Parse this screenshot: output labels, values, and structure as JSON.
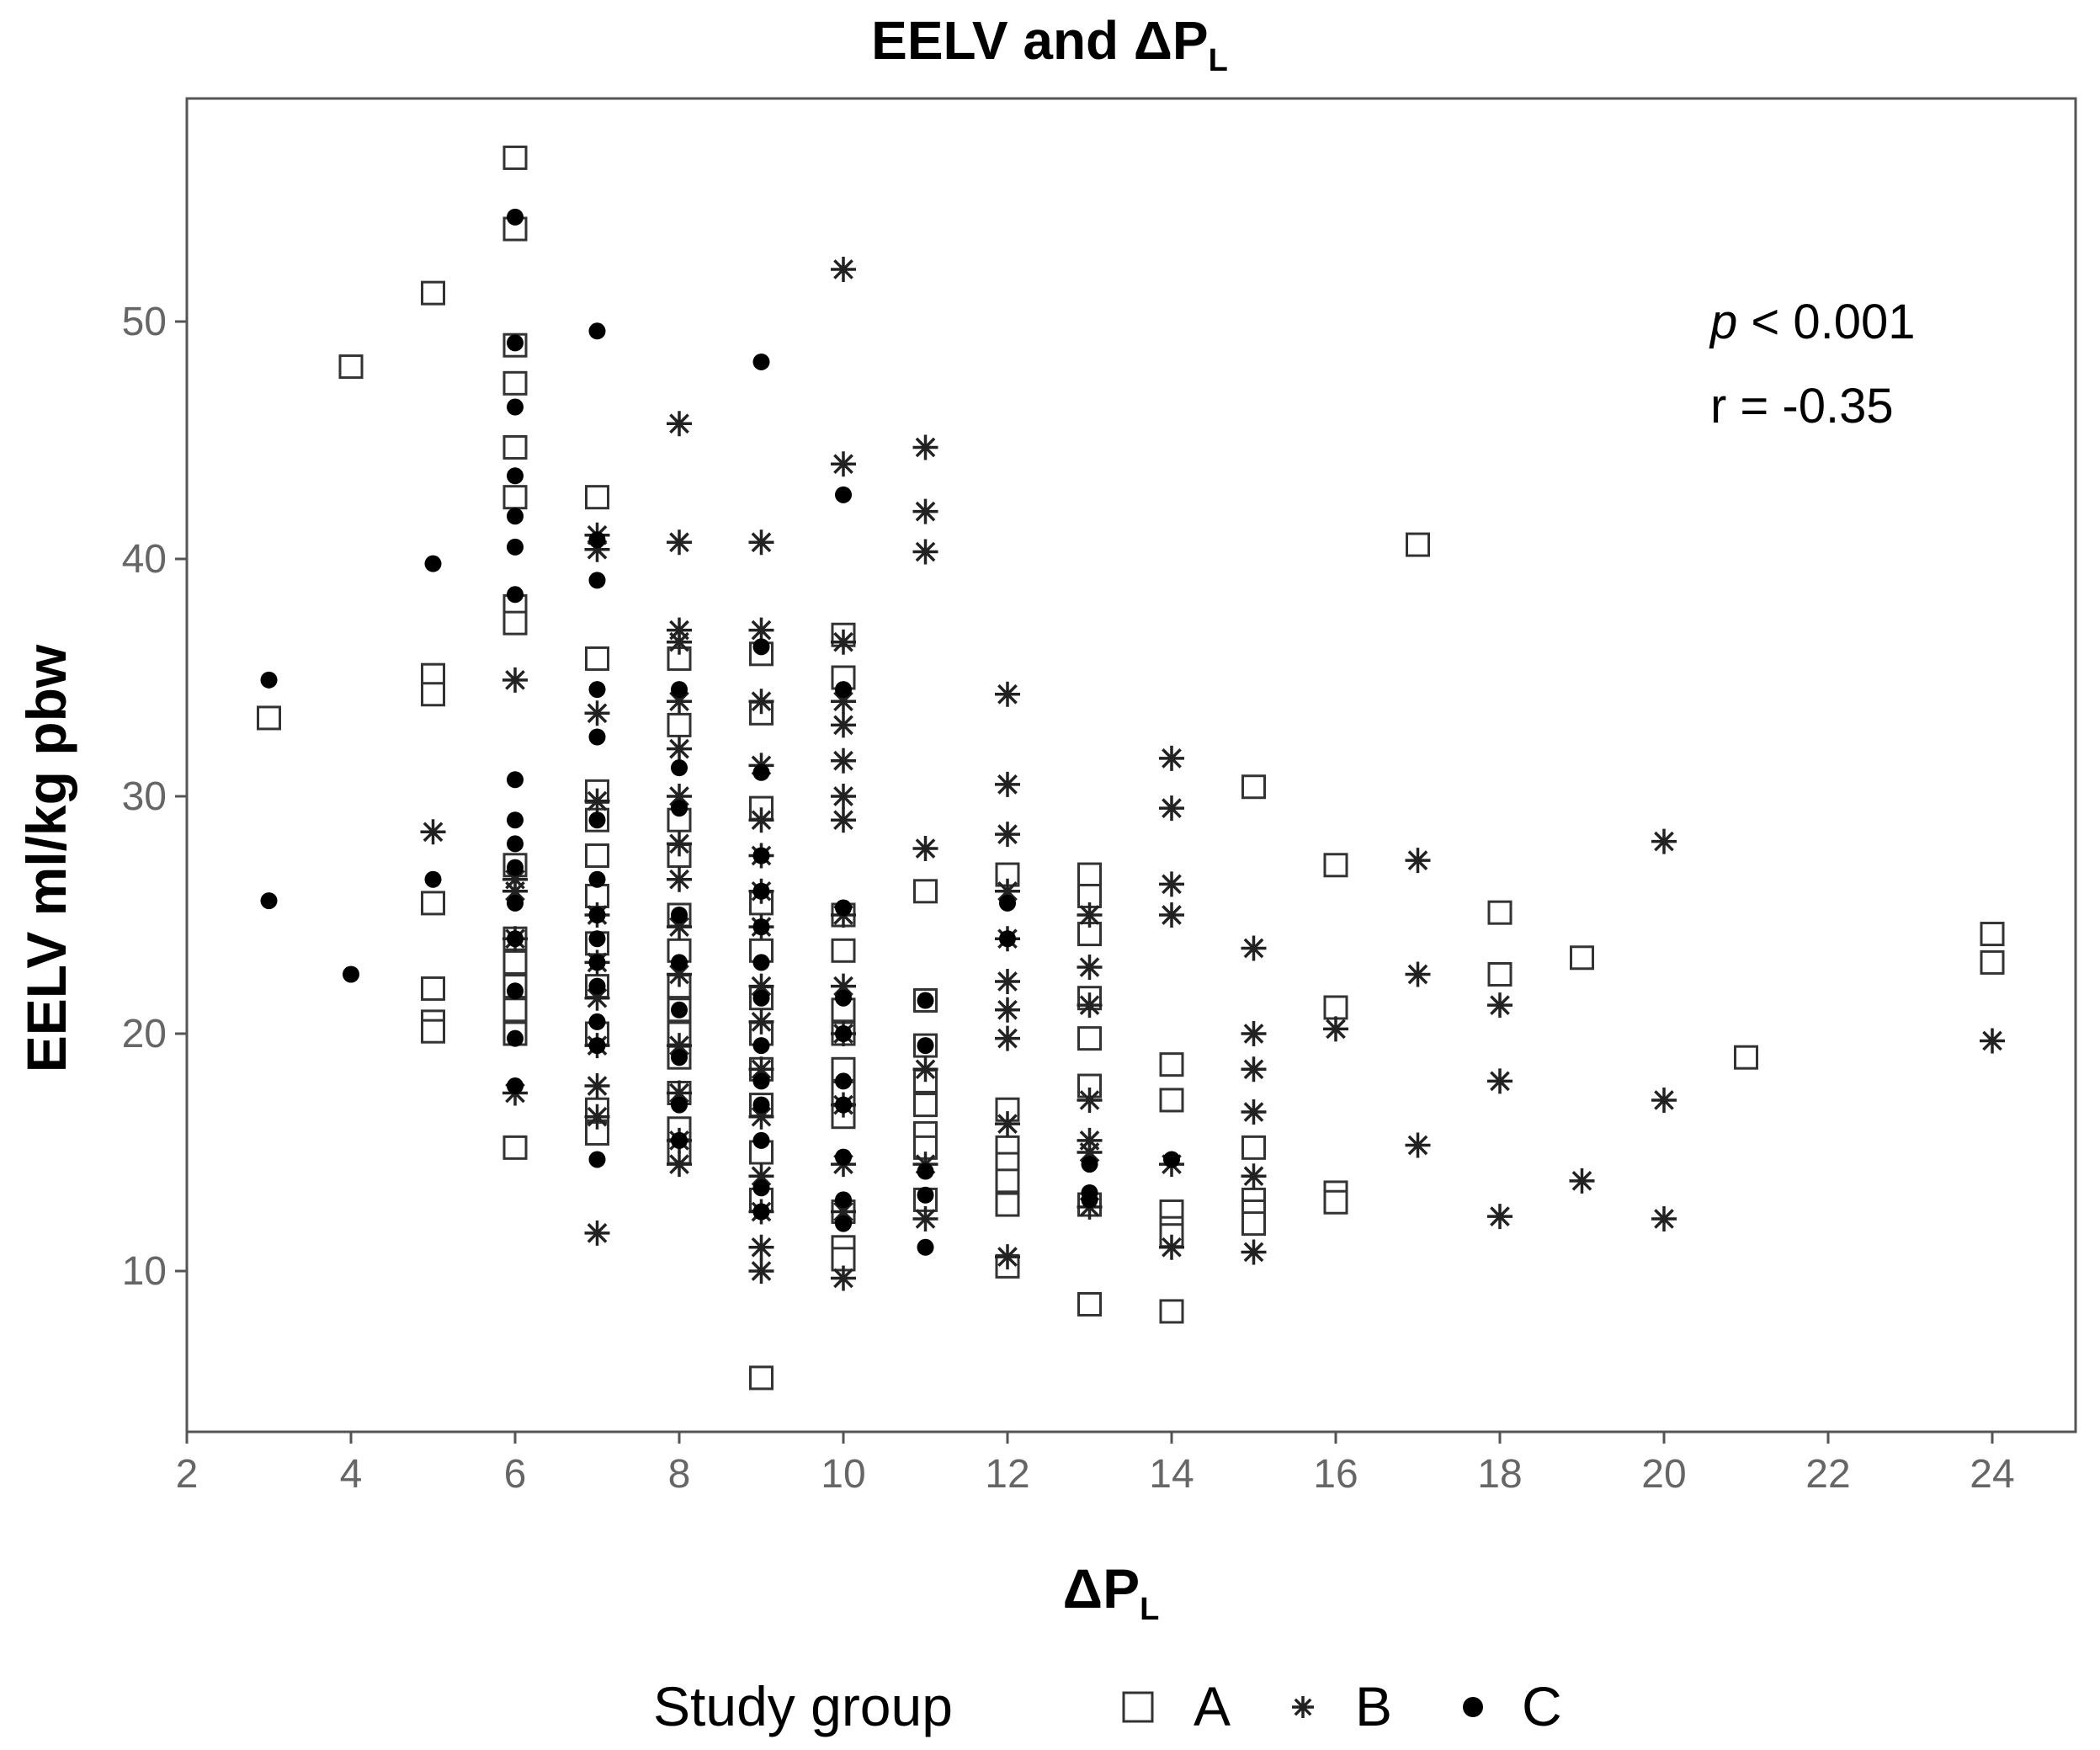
{
  "chart_data": {
    "type": "scatter",
    "title": "EELV and ΔP",
    "title_subscript": "L",
    "xlabel": "ΔP",
    "xlabel_subscript": "L",
    "ylabel": "EELV ml/kg pbw",
    "xlim": [
      2,
      25
    ],
    "ylim": [
      3,
      60
    ],
    "xticks": [
      2,
      4,
      6,
      8,
      10,
      12,
      14,
      16,
      18,
      20,
      22,
      24
    ],
    "yticks": [
      10,
      20,
      30,
      40,
      50
    ],
    "grid": false,
    "legend_position": "bottom",
    "legend_title": "Study group",
    "annotations": {
      "p_label": "p",
      "p_value": " < 0.001",
      "r": "r = -0.35"
    },
    "series": [
      {
        "name": "A",
        "marker": "square",
        "points": [
          [
            3,
            33.3
          ],
          [
            4,
            48.1
          ],
          [
            5,
            51.2
          ],
          [
            5,
            35.1
          ],
          [
            5,
            34.3
          ],
          [
            5,
            25.5
          ],
          [
            5,
            21.9
          ],
          [
            5,
            20.5
          ],
          [
            5,
            20.1
          ],
          [
            6,
            56.9
          ],
          [
            6,
            53.9
          ],
          [
            6,
            49
          ],
          [
            6,
            47.4
          ],
          [
            6,
            44.7
          ],
          [
            6,
            42.6
          ],
          [
            6,
            38
          ],
          [
            6,
            37.3
          ],
          [
            6,
            27.1
          ],
          [
            6,
            24
          ],
          [
            6,
            23
          ],
          [
            6,
            22
          ],
          [
            6,
            21
          ],
          [
            6,
            20
          ],
          [
            6,
            15.2
          ],
          [
            7,
            42.6
          ],
          [
            7,
            35.8
          ],
          [
            7,
            30.2
          ],
          [
            7,
            29
          ],
          [
            7,
            27.5
          ],
          [
            7,
            25.8
          ],
          [
            7,
            23.8
          ],
          [
            7,
            22
          ],
          [
            7,
            20
          ],
          [
            7,
            16.8
          ],
          [
            7,
            15.8
          ],
          [
            8,
            35.8
          ],
          [
            8,
            33
          ],
          [
            8,
            29
          ],
          [
            8,
            27.5
          ],
          [
            8,
            25
          ],
          [
            8,
            23.5
          ],
          [
            8,
            22
          ],
          [
            8,
            21
          ],
          [
            8,
            20
          ],
          [
            8,
            19
          ],
          [
            8,
            17.5
          ],
          [
            8,
            16
          ],
          [
            8,
            15
          ],
          [
            9,
            36
          ],
          [
            9,
            33.5
          ],
          [
            9,
            29.5
          ],
          [
            9,
            25.5
          ],
          [
            9,
            23.5
          ],
          [
            9,
            21.5
          ],
          [
            9,
            20
          ],
          [
            9,
            18.5
          ],
          [
            9,
            17
          ],
          [
            9,
            15
          ],
          [
            9,
            13
          ],
          [
            9,
            5.5
          ],
          [
            10,
            36.8
          ],
          [
            10,
            35
          ],
          [
            10,
            25
          ],
          [
            10,
            23.5
          ],
          [
            10,
            21
          ],
          [
            10,
            20
          ],
          [
            10,
            18.5
          ],
          [
            10,
            17.5
          ],
          [
            10,
            16.5
          ],
          [
            10,
            12.5
          ],
          [
            10,
            11
          ],
          [
            10,
            10.5
          ],
          [
            11,
            26
          ],
          [
            11,
            21.4
          ],
          [
            11,
            19.5
          ],
          [
            11,
            18
          ],
          [
            11,
            17
          ],
          [
            11,
            15.8
          ],
          [
            11,
            15.2
          ],
          [
            11,
            13
          ],
          [
            12,
            26.7
          ],
          [
            12,
            16.8
          ],
          [
            12,
            15.2
          ],
          [
            12,
            14.5
          ],
          [
            12,
            13.8
          ],
          [
            12,
            12.8
          ],
          [
            12,
            10.2
          ],
          [
            13,
            26.7
          ],
          [
            13,
            25.8
          ],
          [
            13,
            24.2
          ],
          [
            13,
            21.5
          ],
          [
            13,
            19.8
          ],
          [
            13,
            17.8
          ],
          [
            13,
            12.8
          ],
          [
            13,
            8.6
          ],
          [
            14,
            18.7
          ],
          [
            14,
            17.2
          ],
          [
            14,
            12.5
          ],
          [
            14,
            11.8
          ],
          [
            14,
            11.5
          ],
          [
            14,
            8.3
          ],
          [
            15,
            30.4
          ],
          [
            15,
            15.2
          ],
          [
            15,
            13
          ],
          [
            15,
            12.5
          ],
          [
            15,
            12
          ],
          [
            16,
            27.1
          ],
          [
            16,
            21.1
          ],
          [
            16,
            13.3
          ],
          [
            16,
            12.9
          ],
          [
            17,
            40.6
          ],
          [
            18,
            25.1
          ],
          [
            18,
            22.5
          ],
          [
            19,
            23.2
          ],
          [
            21,
            19
          ],
          [
            24,
            24.2
          ],
          [
            24,
            23
          ]
        ]
      },
      {
        "name": "B",
        "marker": "asterisk",
        "points": [
          [
            5,
            28.5
          ],
          [
            6,
            34.9
          ],
          [
            6,
            26.5
          ],
          [
            6,
            26
          ],
          [
            6,
            24
          ],
          [
            6,
            17.5
          ],
          [
            7,
            41
          ],
          [
            7,
            40.4
          ],
          [
            7,
            33.5
          ],
          [
            7,
            29.8
          ],
          [
            7,
            25
          ],
          [
            7,
            23
          ],
          [
            7,
            21.5
          ],
          [
            7,
            19.5
          ],
          [
            7,
            17.8
          ],
          [
            7,
            16.5
          ],
          [
            7,
            11.6
          ],
          [
            8,
            45.7
          ],
          [
            8,
            40.7
          ],
          [
            8,
            37
          ],
          [
            8,
            36.5
          ],
          [
            8,
            34
          ],
          [
            8,
            32
          ],
          [
            8,
            30
          ],
          [
            8,
            28
          ],
          [
            8,
            26.5
          ],
          [
            8,
            24.5
          ],
          [
            8,
            22.5
          ],
          [
            8,
            19.5
          ],
          [
            8,
            17.5
          ],
          [
            8,
            15.5
          ],
          [
            8,
            14.5
          ],
          [
            9,
            40.7
          ],
          [
            9,
            37
          ],
          [
            9,
            34
          ],
          [
            9,
            31.3
          ],
          [
            9,
            29
          ],
          [
            9,
            27.5
          ],
          [
            9,
            26
          ],
          [
            9,
            24.5
          ],
          [
            9,
            22
          ],
          [
            9,
            20.5
          ],
          [
            9,
            18.5
          ],
          [
            9,
            16.5
          ],
          [
            9,
            14
          ],
          [
            9,
            12.5
          ],
          [
            9,
            11
          ],
          [
            9,
            10
          ],
          [
            10,
            52.2
          ],
          [
            10,
            44
          ],
          [
            10,
            36.5
          ],
          [
            10,
            34
          ],
          [
            10,
            33
          ],
          [
            10,
            31.5
          ],
          [
            10,
            30
          ],
          [
            10,
            29
          ],
          [
            10,
            25
          ],
          [
            10,
            22
          ],
          [
            10,
            20
          ],
          [
            10,
            17
          ],
          [
            10,
            14.5
          ],
          [
            10,
            12.5
          ],
          [
            10,
            9.7
          ],
          [
            11,
            44.7
          ],
          [
            11,
            42
          ],
          [
            11,
            40.3
          ],
          [
            11,
            27.8
          ],
          [
            11,
            18.5
          ],
          [
            11,
            14.5
          ],
          [
            11,
            12.2
          ],
          [
            12,
            34.3
          ],
          [
            12,
            30.5
          ],
          [
            12,
            28.4
          ],
          [
            12,
            26
          ],
          [
            12,
            24
          ],
          [
            12,
            22.2
          ],
          [
            12,
            21
          ],
          [
            12,
            19.8
          ],
          [
            12,
            16.2
          ],
          [
            12,
            10.6
          ],
          [
            13,
            25
          ],
          [
            13,
            22.8
          ],
          [
            13,
            21.2
          ],
          [
            13,
            17.2
          ],
          [
            13,
            15.5
          ],
          [
            13,
            15
          ],
          [
            13,
            12.7
          ],
          [
            14,
            31.6
          ],
          [
            14,
            29.5
          ],
          [
            14,
            26.3
          ],
          [
            14,
            25
          ],
          [
            14,
            14.5
          ],
          [
            14,
            11
          ],
          [
            15,
            23.6
          ],
          [
            15,
            20
          ],
          [
            15,
            18.5
          ],
          [
            15,
            16.7
          ],
          [
            15,
            14
          ],
          [
            15,
            10.8
          ],
          [
            16,
            20.2
          ],
          [
            17,
            27.3
          ],
          [
            17,
            22.5
          ],
          [
            17,
            15.3
          ],
          [
            18,
            21.2
          ],
          [
            18,
            18
          ],
          [
            18,
            12.3
          ],
          [
            19,
            13.8
          ],
          [
            20,
            28.1
          ],
          [
            20,
            17.2
          ],
          [
            20,
            12.2
          ],
          [
            24,
            19.7
          ]
        ]
      },
      {
        "name": "C",
        "marker": "dot",
        "points": [
          [
            3,
            34.9
          ],
          [
            3,
            25.6
          ],
          [
            4,
            22.5
          ],
          [
            5,
            39.8
          ],
          [
            5,
            26.5
          ],
          [
            6,
            54.4
          ],
          [
            6,
            49.1
          ],
          [
            6,
            46.4
          ],
          [
            6,
            43.5
          ],
          [
            6,
            41.8
          ],
          [
            6,
            40.5
          ],
          [
            6,
            38.5
          ],
          [
            6,
            30.7
          ],
          [
            6,
            29
          ],
          [
            6,
            28
          ],
          [
            6,
            27
          ],
          [
            6,
            25.5
          ],
          [
            6,
            24
          ],
          [
            6,
            21.8
          ],
          [
            6,
            19.8
          ],
          [
            6,
            17.8
          ],
          [
            7,
            49.6
          ],
          [
            7,
            40.8
          ],
          [
            7,
            39.1
          ],
          [
            7,
            34.5
          ],
          [
            7,
            32.5
          ],
          [
            7,
            29
          ],
          [
            7,
            26.5
          ],
          [
            7,
            25
          ],
          [
            7,
            24
          ],
          [
            7,
            23
          ],
          [
            7,
            22
          ],
          [
            7,
            20.5
          ],
          [
            7,
            19.5
          ],
          [
            7,
            14.7
          ],
          [
            8,
            34.5
          ],
          [
            8,
            31.2
          ],
          [
            8,
            29.5
          ],
          [
            8,
            25
          ],
          [
            8,
            23
          ],
          [
            8,
            21
          ],
          [
            8,
            19
          ],
          [
            8,
            17
          ],
          [
            8,
            15.5
          ],
          [
            9,
            48.3
          ],
          [
            9,
            36.3
          ],
          [
            9,
            31
          ],
          [
            9,
            27.5
          ],
          [
            9,
            26
          ],
          [
            9,
            24.5
          ],
          [
            9,
            23
          ],
          [
            9,
            21.5
          ],
          [
            9,
            19.5
          ],
          [
            9,
            18
          ],
          [
            9,
            17
          ],
          [
            9,
            15.5
          ],
          [
            9,
            13.5
          ],
          [
            9,
            12.5
          ],
          [
            10,
            42.7
          ],
          [
            10,
            34.5
          ],
          [
            10,
            25.3
          ],
          [
            10,
            21.5
          ],
          [
            10,
            20
          ],
          [
            10,
            18
          ],
          [
            10,
            17
          ],
          [
            10,
            14.8
          ],
          [
            10,
            13
          ],
          [
            10,
            12
          ],
          [
            11,
            21.4
          ],
          [
            11,
            19.5
          ],
          [
            11,
            14.2
          ],
          [
            11,
            13.2
          ],
          [
            11,
            11
          ],
          [
            12,
            25.5
          ],
          [
            12,
            24
          ],
          [
            13,
            14.5
          ],
          [
            13,
            13.3
          ],
          [
            13,
            13
          ],
          [
            14,
            14.7
          ]
        ]
      }
    ]
  }
}
